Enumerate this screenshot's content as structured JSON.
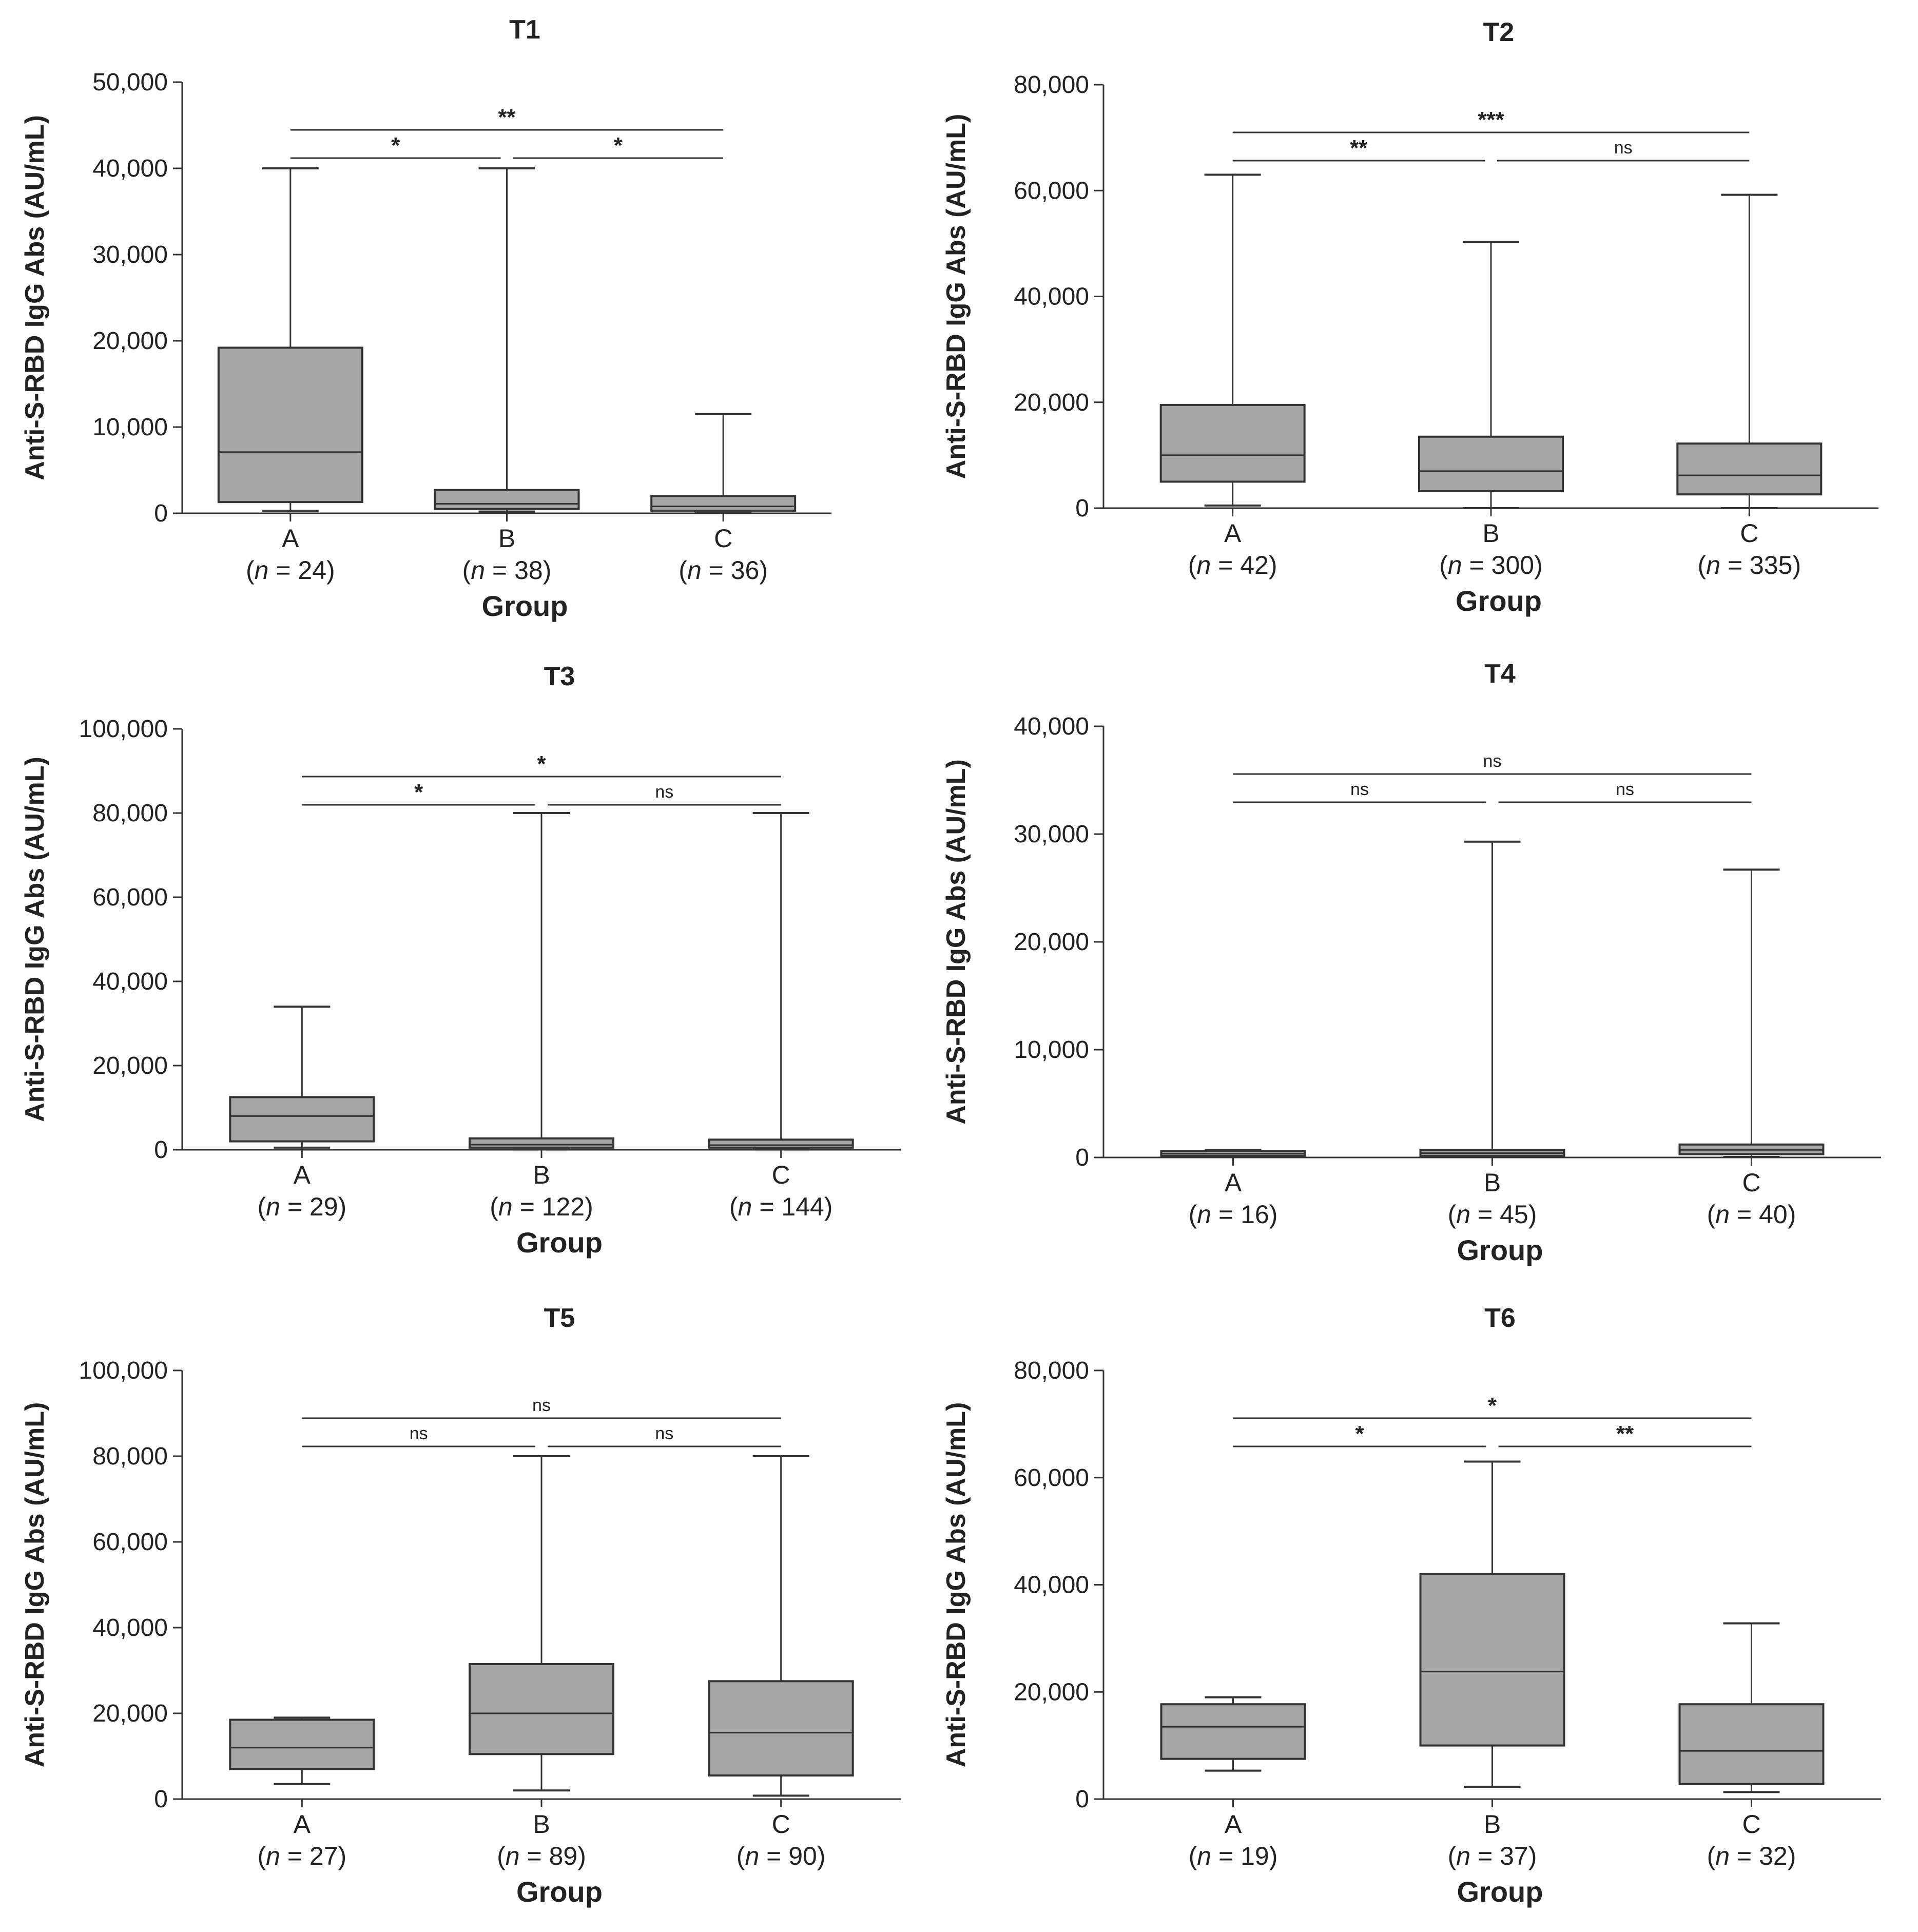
{
  "chart_data": [
    {
      "type": "box",
      "title": "T1",
      "xlabel": "Group",
      "ylabel": "Anti-S-RBD IgG Abs (AU/mL)",
      "ylim": [
        0,
        50000
      ],
      "yticks": [
        0,
        10000,
        20000,
        30000,
        40000,
        50000
      ],
      "ytick_labels": [
        "0",
        "10,000",
        "20,000",
        "30,000",
        "40,000",
        "50,000"
      ],
      "groups": [
        {
          "category": "A",
          "n_label": "24",
          "min": 300,
          "q1": 1300,
          "median": 7100,
          "q3": 19200,
          "max": 40000
        },
        {
          "category": "B",
          "n_label": "38",
          "min": 200,
          "q1": 500,
          "median": 1100,
          "q3": 2700,
          "max": 40000
        },
        {
          "category": "C",
          "n_label": "36",
          "min": 100,
          "q1": 300,
          "median": 800,
          "q3": 2000,
          "max": 11500
        }
      ],
      "comparisons": [
        {
          "pair": [
            "A",
            "C"
          ],
          "label": "**"
        },
        {
          "pair": [
            "A",
            "B"
          ],
          "label": "*"
        },
        {
          "pair": [
            "B",
            "C"
          ],
          "label": "*"
        }
      ]
    },
    {
      "type": "box",
      "title": "T2",
      "xlabel": "Group",
      "ylabel": "Anti-S-RBD IgG Abs (AU/mL)",
      "ylim": [
        0,
        80000
      ],
      "yticks": [
        0,
        20000,
        40000,
        60000,
        80000
      ],
      "ytick_labels": [
        "0",
        "20,000",
        "40,000",
        "60,000",
        "80,000"
      ],
      "groups": [
        {
          "category": "A",
          "n_label": "42",
          "min": 500,
          "q1": 5000,
          "median": 10000,
          "q3": 19500,
          "max": 63000
        },
        {
          "category": "B",
          "n_label": "300",
          "min": 0,
          "q1": 3200,
          "median": 7000,
          "q3": 13500,
          "max": 50300
        },
        {
          "category": "C",
          "n_label": "335",
          "min": 0,
          "q1": 2600,
          "median": 6200,
          "q3": 12200,
          "max": 59200
        }
      ],
      "comparisons": [
        {
          "pair": [
            "A",
            "C"
          ],
          "label": "***"
        },
        {
          "pair": [
            "A",
            "B"
          ],
          "label": "**"
        },
        {
          "pair": [
            "B",
            "C"
          ],
          "label": "ns"
        }
      ]
    },
    {
      "type": "box",
      "title": "T3",
      "xlabel": "Group",
      "ylabel": "Anti-S-RBD IgG Abs (AU/mL)",
      "ylim": [
        0,
        100000
      ],
      "yticks": [
        0,
        20000,
        40000,
        60000,
        80000,
        100000
      ],
      "ytick_labels": [
        "0",
        "20,000",
        "40,000",
        "60,000",
        "80,000",
        "100,000"
      ],
      "groups": [
        {
          "category": "A",
          "n_label": "29",
          "min": 500,
          "q1": 2000,
          "median": 8000,
          "q3": 12500,
          "max": 34000
        },
        {
          "category": "B",
          "n_label": "122",
          "min": 100,
          "q1": 500,
          "median": 1200,
          "q3": 2700,
          "max": 80000
        },
        {
          "category": "C",
          "n_label": "144",
          "min": 100,
          "q1": 500,
          "median": 1100,
          "q3": 2400,
          "max": 80000
        }
      ],
      "comparisons": [
        {
          "pair": [
            "A",
            "C"
          ],
          "label": "*"
        },
        {
          "pair": [
            "A",
            "B"
          ],
          "label": "*"
        },
        {
          "pair": [
            "B",
            "C"
          ],
          "label": "ns"
        }
      ]
    },
    {
      "type": "box",
      "title": "T4",
      "xlabel": "Group",
      "ylabel": "Anti-S-RBD IgG Abs (AU/mL)",
      "ylim": [
        0,
        40000
      ],
      "yticks": [
        0,
        10000,
        20000,
        30000,
        40000
      ],
      "ytick_labels": [
        "0",
        "10,000",
        "20,000",
        "30,000",
        "40,000"
      ],
      "groups": [
        {
          "category": "A",
          "n_label": "16",
          "min": 50,
          "q1": 150,
          "median": 350,
          "q3": 600,
          "max": 700
        },
        {
          "category": "B",
          "n_label": "45",
          "min": 50,
          "q1": 150,
          "median": 400,
          "q3": 700,
          "max": 29300
        },
        {
          "category": "C",
          "n_label": "40",
          "min": 50,
          "q1": 300,
          "median": 700,
          "q3": 1200,
          "max": 26700
        }
      ],
      "comparisons": [
        {
          "pair": [
            "A",
            "C"
          ],
          "label": "ns"
        },
        {
          "pair": [
            "A",
            "B"
          ],
          "label": "ns"
        },
        {
          "pair": [
            "B",
            "C"
          ],
          "label": "ns"
        }
      ]
    },
    {
      "type": "box",
      "title": "T5",
      "xlabel": "Group",
      "ylabel": "Anti-S-RBD IgG Abs (AU/mL)",
      "ylim": [
        0,
        100000
      ],
      "yticks": [
        0,
        20000,
        40000,
        60000,
        80000,
        100000
      ],
      "ytick_labels": [
        "0",
        "20,000",
        "40,000",
        "60,000",
        "80,000",
        "100,000"
      ],
      "groups": [
        {
          "category": "A",
          "n_label": "27",
          "min": 3500,
          "q1": 7000,
          "median": 12000,
          "q3": 18500,
          "max": 19000
        },
        {
          "category": "B",
          "n_label": "89",
          "min": 2000,
          "q1": 10500,
          "median": 20000,
          "q3": 31500,
          "max": 80000
        },
        {
          "category": "C",
          "n_label": "90",
          "min": 800,
          "q1": 5500,
          "median": 15500,
          "q3": 27500,
          "max": 80000
        }
      ],
      "comparisons": [
        {
          "pair": [
            "A",
            "C"
          ],
          "label": "ns"
        },
        {
          "pair": [
            "A",
            "B"
          ],
          "label": "ns"
        },
        {
          "pair": [
            "B",
            "C"
          ],
          "label": "ns"
        }
      ]
    },
    {
      "type": "box",
      "title": "T6",
      "xlabel": "Group",
      "ylabel": "Anti-S-RBD IgG Abs (AU/mL)",
      "ylim": [
        0,
        80000
      ],
      "yticks": [
        0,
        20000,
        40000,
        60000,
        80000
      ],
      "ytick_labels": [
        "0",
        "20,000",
        "40,000",
        "60,000",
        "80,000"
      ],
      "groups": [
        {
          "category": "A",
          "n_label": "19",
          "min": 5300,
          "q1": 7500,
          "median": 13500,
          "q3": 17700,
          "max": 19000
        },
        {
          "category": "B",
          "n_label": "37",
          "min": 2300,
          "q1": 10000,
          "median": 23800,
          "q3": 42000,
          "max": 63000
        },
        {
          "category": "C",
          "n_label": "32",
          "min": 1300,
          "q1": 2800,
          "median": 9000,
          "q3": 17700,
          "max": 32800
        }
      ],
      "comparisons": [
        {
          "pair": [
            "A",
            "C"
          ],
          "label": "*"
        },
        {
          "pair": [
            "A",
            "B"
          ],
          "label": "*"
        },
        {
          "pair": [
            "B",
            "C"
          ],
          "label": "**"
        }
      ]
    }
  ],
  "colors": {
    "box_fill": "#a6a6a6",
    "line": "#333333",
    "axis": "#333333",
    "text": "#222222",
    "background": "#ffffff"
  }
}
